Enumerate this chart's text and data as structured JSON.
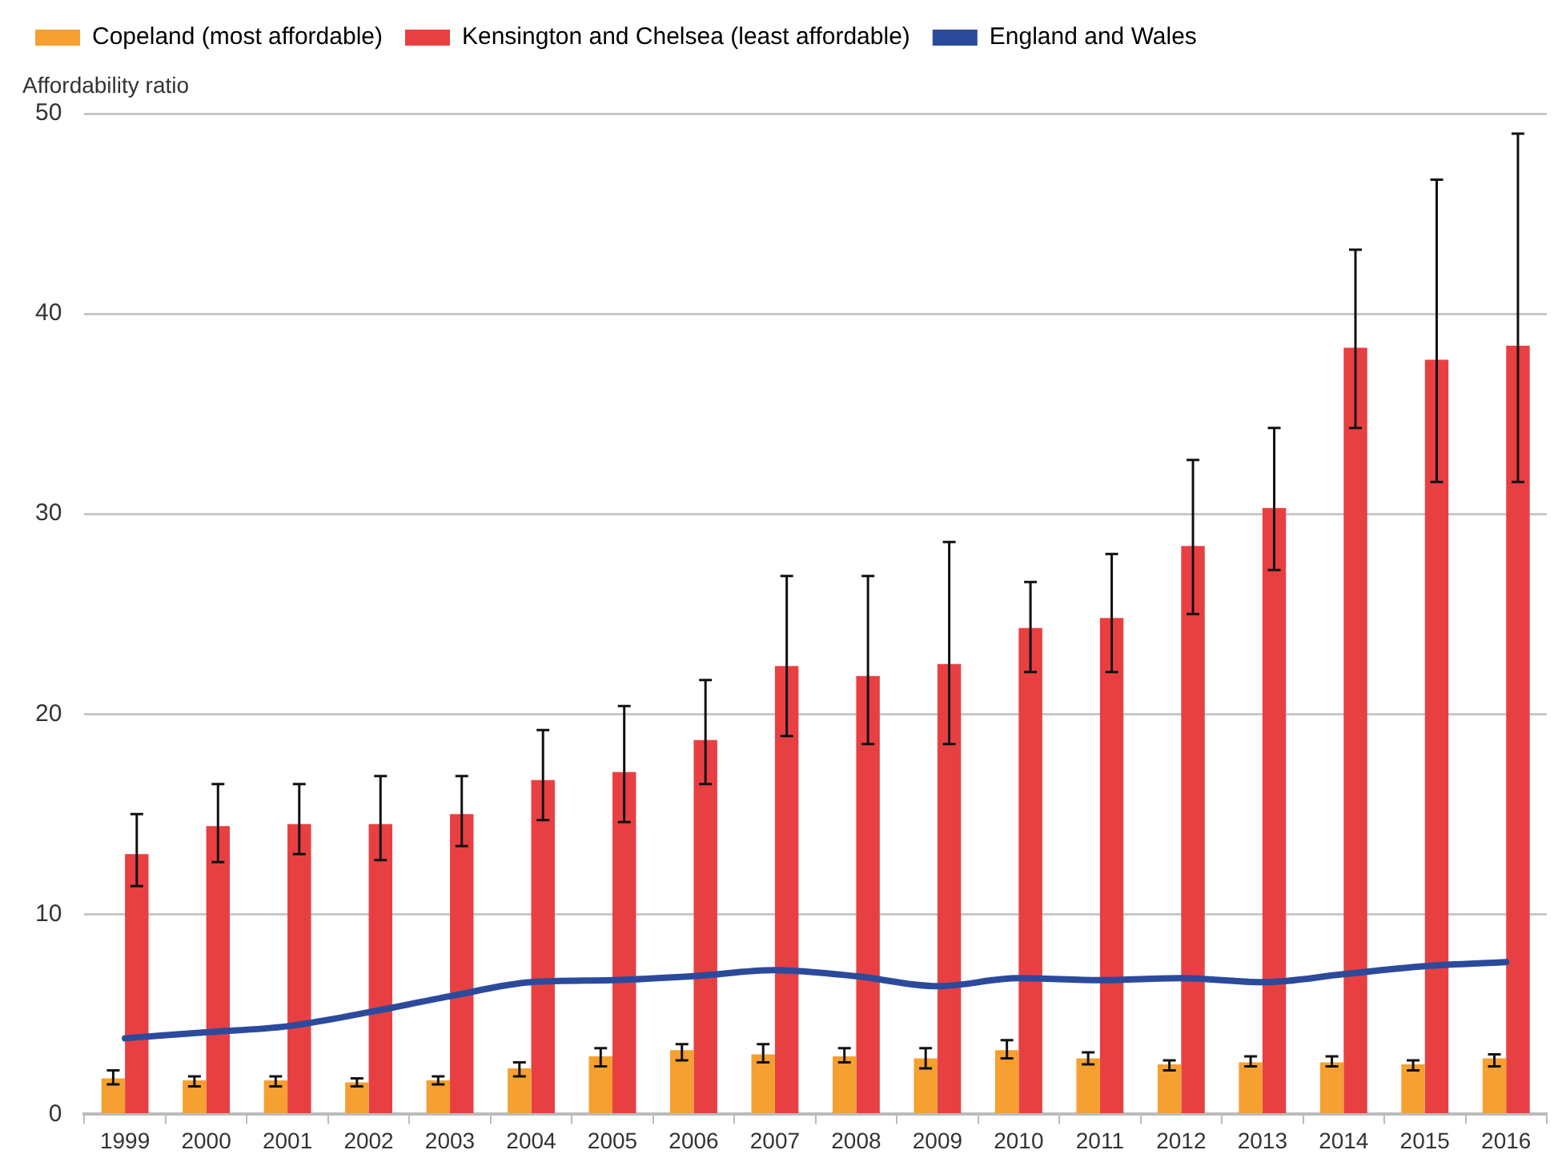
{
  "chart_data": {
    "type": "bar",
    "ylabel": "Affordability ratio",
    "categories": [
      "1999",
      "2000",
      "2001",
      "2002",
      "2003",
      "2004",
      "2005",
      "2006",
      "2007",
      "2008",
      "2009",
      "2010",
      "2011",
      "2012",
      "2013",
      "2014",
      "2015",
      "2016"
    ],
    "series": [
      {
        "name": "Copeland (most affordable)",
        "color": "#f5a030",
        "values": [
          1.8,
          1.7,
          1.7,
          1.6,
          1.7,
          2.3,
          2.9,
          3.2,
          3.0,
          2.9,
          2.8,
          3.2,
          2.8,
          2.5,
          2.6,
          2.6,
          2.5,
          2.8
        ],
        "errors": [
          [
            1.5,
            2.2
          ],
          [
            1.4,
            1.9
          ],
          [
            1.4,
            1.9
          ],
          [
            1.4,
            1.8
          ],
          [
            1.5,
            1.9
          ],
          [
            1.9,
            2.6
          ],
          [
            2.4,
            3.3
          ],
          [
            2.7,
            3.5
          ],
          [
            2.6,
            3.5
          ],
          [
            2.6,
            3.3
          ],
          [
            2.3,
            3.3
          ],
          [
            2.8,
            3.7
          ],
          [
            2.5,
            3.1
          ],
          [
            2.2,
            2.7
          ],
          [
            2.4,
            2.9
          ],
          [
            2.4,
            2.9
          ],
          [
            2.2,
            2.7
          ],
          [
            2.4,
            3.0
          ]
        ]
      },
      {
        "name": "Kensington and Chelsea (least affordable)",
        "color": "#e84042",
        "values": [
          13.0,
          14.4,
          14.5,
          14.5,
          15.0,
          16.7,
          17.1,
          18.7,
          22.4,
          21.9,
          22.5,
          24.3,
          24.8,
          28.4,
          30.3,
          38.3,
          37.7,
          38.4
        ],
        "errors": [
          [
            11.4,
            15.0
          ],
          [
            12.6,
            16.5
          ],
          [
            13.0,
            16.5
          ],
          [
            12.7,
            16.9
          ],
          [
            13.4,
            16.9
          ],
          [
            14.7,
            19.2
          ],
          [
            14.6,
            20.4
          ],
          [
            16.5,
            21.7
          ],
          [
            18.9,
            26.9
          ],
          [
            18.5,
            26.9
          ],
          [
            18.5,
            28.6
          ],
          [
            22.1,
            26.6
          ],
          [
            22.1,
            28.0
          ],
          [
            25.0,
            32.7
          ],
          [
            27.2,
            34.3
          ],
          [
            34.3,
            43.2
          ],
          [
            31.6,
            46.7
          ],
          [
            31.6,
            49.0
          ]
        ]
      },
      {
        "name": "England and Wales",
        "type": "line",
        "color": "#2c4a9c",
        "values": [
          3.8,
          4.1,
          4.4,
          5.1,
          5.9,
          6.6,
          6.7,
          6.9,
          7.2,
          6.9,
          6.4,
          6.8,
          6.7,
          6.8,
          6.6,
          7.0,
          7.4,
          7.6
        ]
      }
    ],
    "ylim": [
      0,
      50
    ],
    "yticks": [
      0,
      10,
      20,
      30,
      40,
      50
    ],
    "grid": "y",
    "legend": "top left",
    "marker": "none"
  }
}
